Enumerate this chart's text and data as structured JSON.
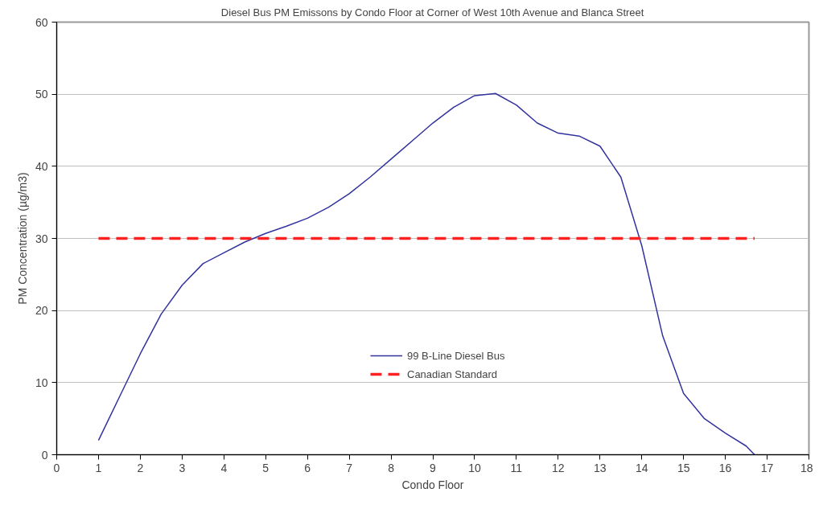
{
  "chart_data": {
    "type": "line",
    "title": "Diesel Bus PM Emissons by Condo Floor at Corner of West 10th Avenue and Blanca Street",
    "xlabel": "Condo Floor",
    "ylabel": "PM Concentration (µg/m3)",
    "xlim": [
      0,
      18
    ],
    "xticks": [
      0,
      1,
      2,
      3,
      4,
      5,
      6,
      7,
      8,
      9,
      10,
      11,
      12,
      13,
      14,
      15,
      16,
      17,
      18
    ],
    "ylim": [
      0,
      60
    ],
    "yticks": [
      0,
      10,
      20,
      30,
      40,
      50,
      60
    ],
    "grid": "y",
    "legend": "bottom",
    "series": [
      {
        "name": "99 B-Line Diesel Bus",
        "color": "#3333a0",
        "line_style": "solid",
        "x": [
          1,
          1.5,
          2,
          2.5,
          3,
          3.5,
          4,
          4.5,
          5,
          5.5,
          6,
          6.5,
          7,
          7.5,
          8,
          8.5,
          9,
          9.5,
          10,
          10.5,
          11,
          11.5,
          12,
          12.5,
          13,
          13.5,
          14,
          14.5,
          15,
          15.5,
          16,
          16.5,
          16.7
        ],
        "values": [
          2,
          8,
          14,
          19.5,
          23.5,
          26.5,
          28,
          29.5,
          30.7,
          31.7,
          32.8,
          34.3,
          36.2,
          38.5,
          41,
          43.5,
          46,
          48.2,
          49.8,
          50.1,
          48.5,
          46,
          44.6,
          44.2,
          42.8,
          38.5,
          29,
          16.5,
          8.5,
          5,
          3,
          1.2,
          0
        ]
      },
      {
        "name": "Canadian Standard",
        "color": "#ff2020",
        "line_style": "dashed",
        "x": [
          1,
          16.7
        ],
        "values": [
          30,
          30
        ]
      }
    ]
  }
}
